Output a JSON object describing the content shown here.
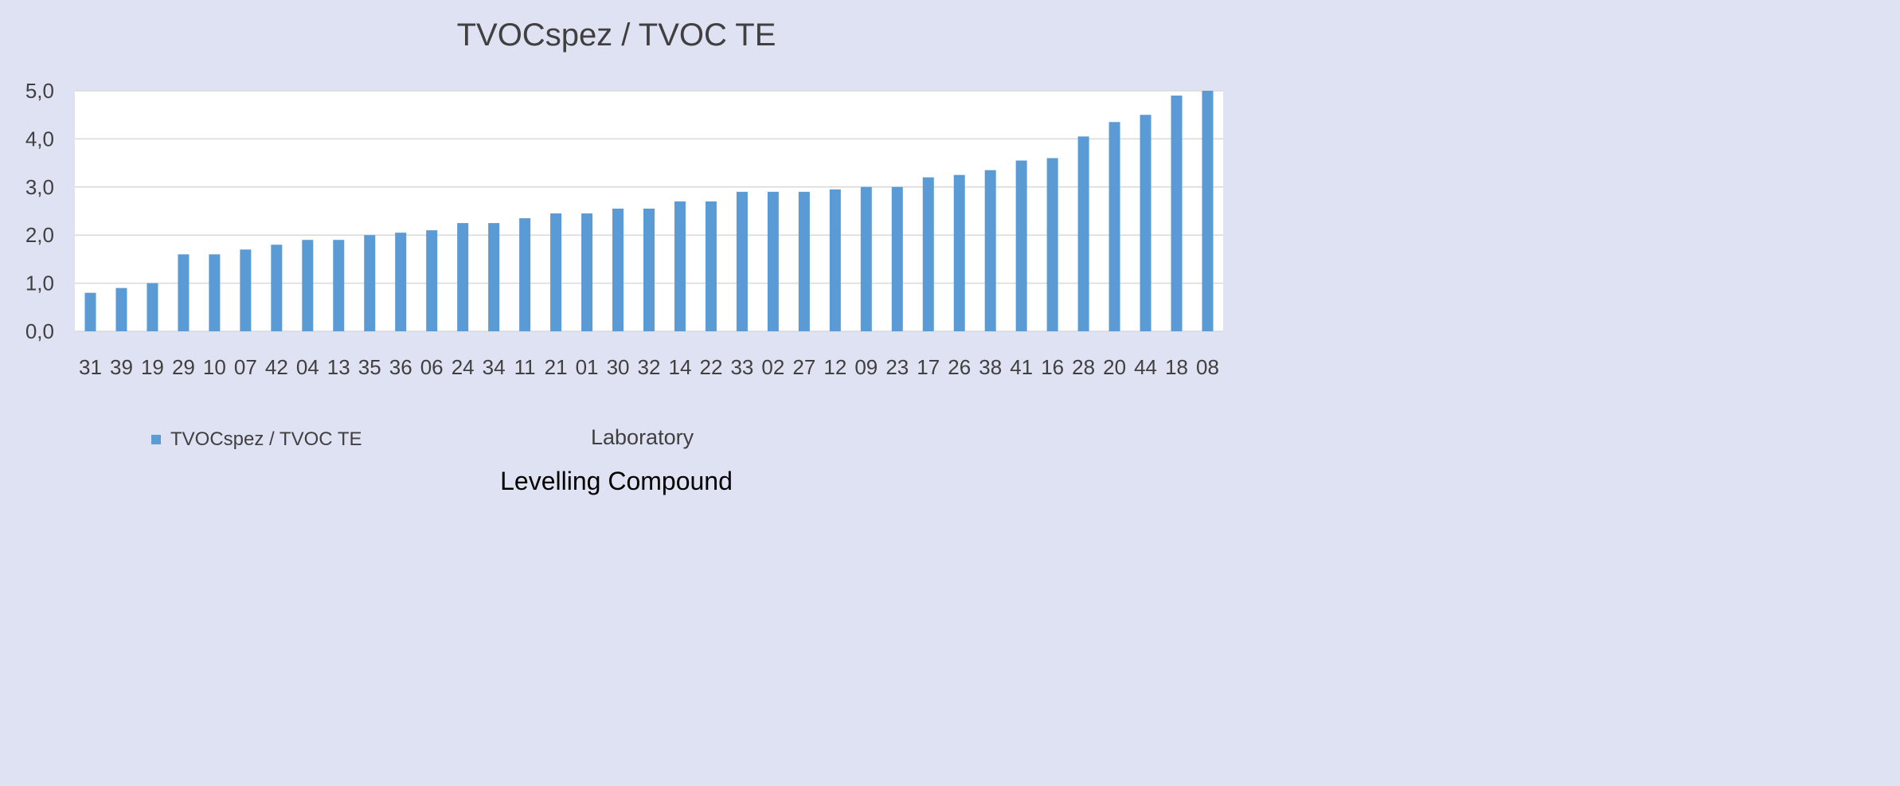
{
  "chart_data": {
    "type": "bar",
    "title": "TVOCspez / TVOC TE",
    "xlabel": "Laboratory",
    "ylabel": "",
    "ylim": [
      0,
      5
    ],
    "yticks": [
      "0,0",
      "1,0",
      "2,0",
      "3,0",
      "4,0",
      "5,0"
    ],
    "grid": true,
    "legend_position": "bottom-left",
    "categories": [
      "31",
      "39",
      "19",
      "29",
      "10",
      "07",
      "42",
      "04",
      "13",
      "35",
      "36",
      "06",
      "24",
      "34",
      "11",
      "21",
      "01",
      "30",
      "32",
      "14",
      "22",
      "33",
      "02",
      "27",
      "12",
      "09",
      "23",
      "17",
      "26",
      "38",
      "41",
      "16",
      "28",
      "20",
      "44",
      "18",
      "08"
    ],
    "series": [
      {
        "name": "TVOCspez / TVOC TE",
        "color": "#5b9bd5",
        "values": [
          0.8,
          0.9,
          1.0,
          1.6,
          1.6,
          1.7,
          1.8,
          1.9,
          1.9,
          2.0,
          2.05,
          2.1,
          2.25,
          2.25,
          2.35,
          2.45,
          2.45,
          2.55,
          2.55,
          2.7,
          2.7,
          2.9,
          2.9,
          2.9,
          2.95,
          3.0,
          3.0,
          3.2,
          3.25,
          3.35,
          3.55,
          3.6,
          4.05,
          4.35,
          4.5,
          4.9,
          5.0
        ]
      }
    ]
  },
  "caption": "Levelling Compound"
}
